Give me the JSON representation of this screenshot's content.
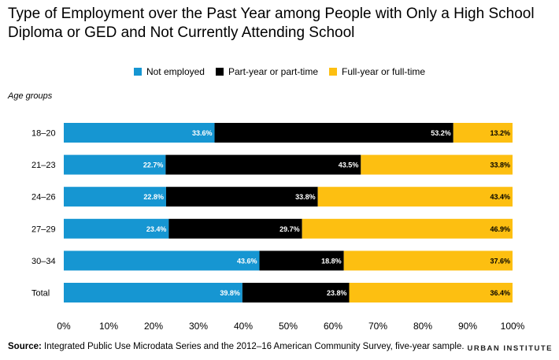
{
  "title": "Type of Employment over the Past Year among People with Only a High School Diploma or GED and Not Currently Attending School",
  "y_axis_title": "Age groups",
  "source_label": "Source:",
  "source_text": "Integrated Public Use Microdata Series and the 2012–16 American Community Survey, five-year sample.",
  "brand": "URBAN INSTITUTE",
  "colors": {
    "not_employed": "#1696d2",
    "part_year": "#000000",
    "full_year": "#fdbf11"
  },
  "chart_data": {
    "type": "bar",
    "orientation": "horizontal",
    "stacked": true,
    "categories": [
      "18–20",
      "21–23",
      "24–26",
      "27–29",
      "30–34",
      "Total"
    ],
    "series": [
      {
        "name": "Not employed",
        "values": [
          33.6,
          22.7,
          22.8,
          23.4,
          43.6,
          39.8
        ],
        "labels": [
          "33.6%",
          "22.7%",
          "22.8%",
          "23.4%",
          "43.6%",
          "39.8%"
        ]
      },
      {
        "name": "Part-year or part-time",
        "values": [
          53.2,
          43.5,
          33.8,
          29.7,
          18.8,
          23.8
        ],
        "labels": [
          "53.2%",
          "43.5%",
          "33.8%",
          "29.7%",
          "18.8%",
          "23.8%"
        ]
      },
      {
        "name": "Full-year or full-time",
        "values": [
          13.2,
          33.8,
          43.4,
          46.9,
          37.6,
          36.4
        ],
        "labels": [
          "13.2%",
          "33.8%",
          "43.4%",
          "46.9%",
          "37.6%",
          "36.4%"
        ]
      }
    ],
    "xlim": [
      0,
      100
    ],
    "x_ticks": [
      "0%",
      "10%",
      "20%",
      "30%",
      "40%",
      "50%",
      "60%",
      "70%",
      "80%",
      "90%",
      "100%"
    ],
    "legend_position": "top-center",
    "grid": false
  }
}
